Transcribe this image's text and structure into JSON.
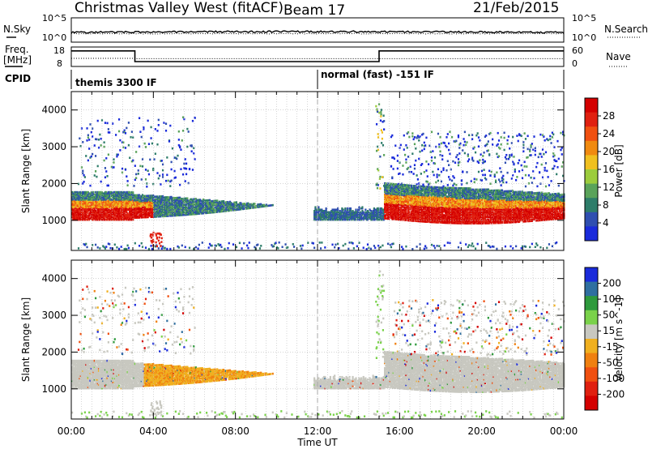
{
  "header": {
    "site": "Christmas Valley West (fitACF)",
    "beam": "Beam 17",
    "date": "21/Feb/2015"
  },
  "strip_labels": {
    "nsky": "N.Sky",
    "nsearch": "N.Search",
    "freq": "Freq.",
    "freq_unit": "[MHz]",
    "nave": "Nave",
    "cpid": "CPID",
    "nsky_ticks": [
      "10^5",
      "10^0"
    ],
    "nsearch_ticks": [
      "10^5",
      "10^0"
    ],
    "freq_ticks": [
      "18",
      "8"
    ],
    "nave_ticks": [
      "60",
      "0"
    ]
  },
  "cpid_segments": [
    {
      "label": "themis 3300 IF"
    },
    {
      "label": "normal (fast) -151 IF"
    }
  ],
  "colors": {
    "power_scale": [
      "#1a2bdb",
      "#2f4fb0",
      "#2e7d6a",
      "#5aa35a",
      "#9ccc3c",
      "#f0c020",
      "#f08a10",
      "#f05010",
      "#e02010",
      "#d40000"
    ],
    "velocity_scale": [
      "#1a2bdb",
      "#2f6fa0",
      "#2e9a3c",
      "#7ad24a",
      "#c8c8c0",
      "#f0b020",
      "#f08010",
      "#f05010",
      "#e02010",
      "#d40000"
    ]
  },
  "chart_data": [
    {
      "type": "heatmap",
      "name": "power",
      "ylabel": "Slant Range [km]",
      "ylim": [
        180,
        4500
      ],
      "y_ticks": [
        "1000",
        "2000",
        "3000",
        "4000"
      ],
      "xlim_hours": [
        0,
        24
      ],
      "colorbar_label": "Power [dB]",
      "colorbar_ticks": [
        "4",
        "8",
        "12",
        "16",
        "20",
        "24",
        "28"
      ],
      "grid": true
    },
    {
      "type": "heatmap",
      "name": "velocity",
      "ylabel": "Slant Range [km]",
      "ylim": [
        180,
        4500
      ],
      "y_ticks": [
        "1000",
        "2000",
        "3000",
        "4000"
      ],
      "xlim_hours": [
        0,
        24
      ],
      "colorbar_label": "Velocity [m s^-1]",
      "colorbar_ticks": [
        "200",
        "100",
        "50",
        "15",
        "-15",
        "-50",
        "-100",
        "-200"
      ],
      "grid": true
    }
  ],
  "x_axis": {
    "label": "Time UT",
    "ticks": [
      "00:00",
      "04:00",
      "08:00",
      "12:00",
      "16:00",
      "20:00",
      "00:00"
    ]
  }
}
